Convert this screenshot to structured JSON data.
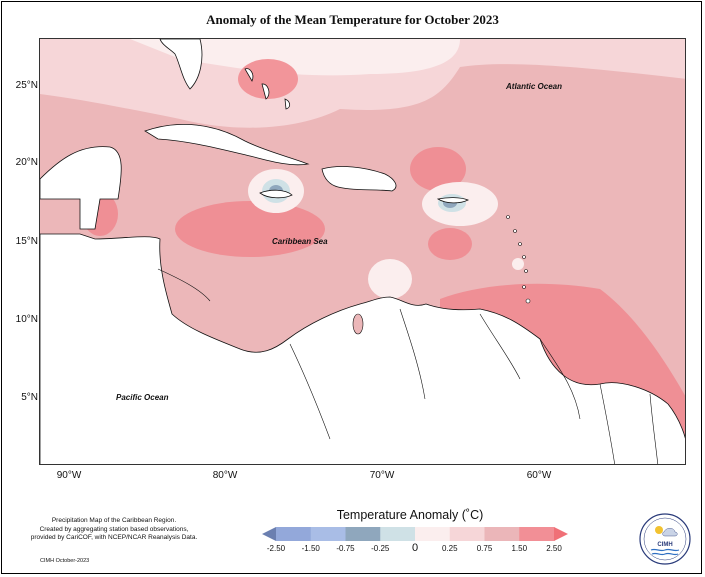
{
  "title": "Anomaly of the Mean Temperature for October 2023",
  "axes": {
    "lat_labels": [
      "25°N",
      "20°N",
      "15°N",
      "10°N",
      "5°N"
    ],
    "lon_labels": [
      "90°W",
      "80°W",
      "70°W",
      "60°W"
    ]
  },
  "map_labels": {
    "atlantic": "Atlantic Ocean",
    "caribbean": "Caribbean Sea",
    "pacific": "Pacific Ocean"
  },
  "legend": {
    "title": "Temperature Anomaly (˚C)",
    "ticks": [
      "-2.50",
      "-1.50",
      "-0.75",
      "-0.25",
      "0",
      "0.25",
      "0.75",
      "1.50",
      "2.50"
    ],
    "colors": [
      "#6b7fb0",
      "#93a8da",
      "#a9bde6",
      "#8fa7bd",
      "#cfe1e6",
      "#fbeeee",
      "#f6d6d8",
      "#ebb6b9",
      "#f28f96",
      "#f07077"
    ]
  },
  "credits": {
    "line1": "Precipitation Map of the Caribbean Region.",
    "line2": "Created by aggregating station based observations,",
    "line3": "provided by CariCOF, with NCEP/NCAR Reanalysis Data.",
    "footnote": "CIMH October-2023"
  },
  "logo": {
    "text": "CIMH"
  }
}
